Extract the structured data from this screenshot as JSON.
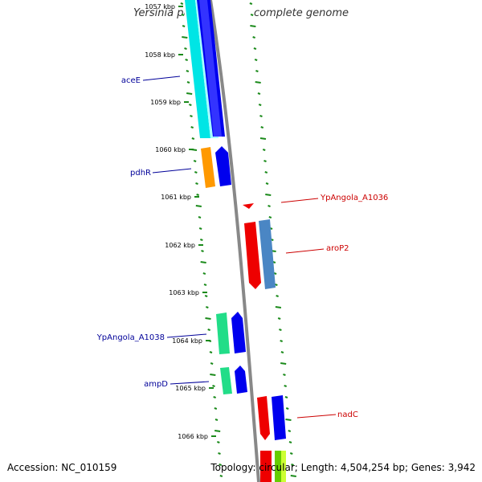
{
  "title": "Yersinia pestis Angola, complete genome",
  "footer": {
    "accession": "Accession: NC_010159",
    "topology": "Topology: circular; Length: 4,504,254 bp; Genes: 3,942"
  },
  "ticks": [
    "1057 kbp",
    "1058 kbp",
    "1059 kbp",
    "1060 kbp",
    "1061 kbp",
    "1062 kbp",
    "1063 kbp",
    "1064 kbp",
    "1065 kbp",
    "1066 kbp"
  ],
  "genes": [
    {
      "name": "aceE",
      "strand": "forward",
      "label_color": "#000099"
    },
    {
      "name": "pdhR",
      "strand": "forward",
      "label_color": "#000099"
    },
    {
      "name": "YpAngola_A1036",
      "strand": "reverse",
      "label_color": "#cc0000"
    },
    {
      "name": "aroP2",
      "strand": "reverse",
      "label_color": "#cc0000"
    },
    {
      "name": "YpAngola_A1038",
      "strand": "forward",
      "label_color": "#000099"
    },
    {
      "name": "ampD",
      "strand": "forward",
      "label_color": "#000099"
    },
    {
      "name": "nadC",
      "strand": "reverse",
      "label_color": "#cc0000"
    }
  ],
  "colors": {
    "backbone": "#888888",
    "forward_cog": "#0000ee",
    "reverse_cog": "#ee0000",
    "gc_skew": "#1a8a1a"
  }
}
